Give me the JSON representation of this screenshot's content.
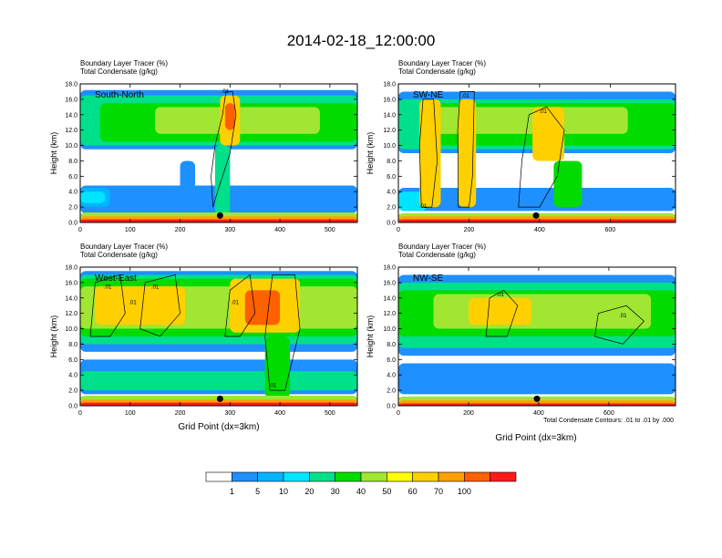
{
  "figure": {
    "title": "2014-02-18_12:00:00",
    "subtitle_line1": "Boundary Layer Tracer   (%)",
    "subtitle_line2": "Total Condensate   (g/kg)",
    "ylabel": "Height (km)",
    "xlabel": "Grid Point (dx=3km)",
    "contour_note": "Total Condensate Contours: .01 to .01 by .000"
  },
  "colorbar": {
    "levels": [
      "1",
      "5",
      "10",
      "20",
      "30",
      "40",
      "50",
      "60",
      "70",
      "100"
    ],
    "colors": [
      "#ffffff",
      "#1e90ff",
      "#00b4ff",
      "#00e5ff",
      "#00e08a",
      "#00dc00",
      "#a0e632",
      "#ffff00",
      "#ffd000",
      "#ffa000",
      "#ff6000",
      "#ff1a1a"
    ]
  },
  "chart_data": [
    {
      "type": "heatmap",
      "panel": "South-North",
      "title": "South-North",
      "xlim": [
        0,
        555
      ],
      "ylim": [
        0,
        18
      ],
      "xticks": [
        "0",
        "100",
        "200",
        "300",
        "400",
        "500"
      ],
      "yticks": [
        "0.0",
        "2.0",
        "4.0",
        "6.0",
        "8.0",
        "10.0",
        "12.0",
        "14.0",
        "16.0",
        "18.0"
      ],
      "marker_x": 280,
      "contour_labels": [
        {
          "text": ".01",
          "x": 290,
          "y": 17.1
        }
      ],
      "regions": [
        {
          "level": 0,
          "x": [
            0,
            555
          ],
          "y": [
            0,
            18
          ]
        },
        {
          "level": 1,
          "x": [
            0,
            555
          ],
          "y": [
            1.2,
            4.8
          ]
        },
        {
          "level": 2,
          "x": [
            0,
            60
          ],
          "y": [
            2.0,
            4.5
          ]
        },
        {
          "level": 3,
          "x": [
            0,
            50
          ],
          "y": [
            2.5,
            4.0
          ]
        },
        {
          "level": 1,
          "x": [
            0,
            555
          ],
          "y": [
            9.5,
            17.2
          ]
        },
        {
          "level": 4,
          "x": [
            0,
            555
          ],
          "y": [
            10.0,
            16.5
          ]
        },
        {
          "level": 5,
          "x": [
            40,
            555
          ],
          "y": [
            10.5,
            15.5
          ]
        },
        {
          "level": 6,
          "x": [
            150,
            480
          ],
          "y": [
            11.5,
            15.0
          ]
        },
        {
          "level": 8,
          "x": [
            280,
            320
          ],
          "y": [
            10.0,
            16.5
          ]
        },
        {
          "level": 10,
          "x": [
            290,
            310
          ],
          "y": [
            12.0,
            15.5
          ]
        },
        {
          "level": 4,
          "x": [
            270,
            300
          ],
          "y": [
            1.0,
            10.0
          ]
        },
        {
          "level": 1,
          "x": [
            200,
            230
          ],
          "y": [
            3.0,
            8.0
          ]
        },
        {
          "level": 6,
          "x": [
            0,
            555
          ],
          "y": [
            0.5,
            1.3
          ]
        },
        {
          "level": 9,
          "x": [
            0,
            555
          ],
          "y": [
            0,
            0.8
          ]
        },
        {
          "level": 11,
          "x": [
            0,
            555
          ],
          "y": [
            0,
            0.4
          ]
        }
      ],
      "contours": [
        [
          [
            266,
            2
          ],
          [
            262,
            6
          ],
          [
            270,
            10
          ],
          [
            285,
            14
          ],
          [
            292,
            17
          ],
          [
            305,
            17
          ],
          [
            312,
            14
          ],
          [
            300,
            9
          ],
          [
            275,
            4
          ]
        ]
      ]
    },
    {
      "type": "heatmap",
      "panel": "SW-NE",
      "title": "SW-NE",
      "xlim": [
        0,
        785
      ],
      "ylim": [
        0,
        18
      ],
      "xticks": [
        "0",
        "200",
        "400",
        "600"
      ],
      "yticks": [
        "0.0",
        "2.0",
        "4.0",
        "6.0",
        "8.0",
        "10.0",
        "12.0",
        "14.0",
        "16.0",
        "18.0"
      ],
      "marker_x": 390,
      "contour_labels": [
        {
          "text": ".01",
          "x": 190,
          "y": 16.5
        },
        {
          "text": ".01",
          "x": 410,
          "y": 14.5
        },
        {
          "text": ".01",
          "x": 70,
          "y": 2.2
        }
      ],
      "regions": [
        {
          "level": 0,
          "x": [
            0,
            785
          ],
          "y": [
            0,
            18
          ]
        },
        {
          "level": 1,
          "x": [
            0,
            785
          ],
          "y": [
            1.5,
            4.5
          ]
        },
        {
          "level": 3,
          "x": [
            0,
            80
          ],
          "y": [
            1.5,
            4.0
          ]
        },
        {
          "level": 1,
          "x": [
            0,
            785
          ],
          "y": [
            9.0,
            17.0
          ]
        },
        {
          "level": 4,
          "x": [
            0,
            785
          ],
          "y": [
            9.5,
            16.0
          ]
        },
        {
          "level": 5,
          "x": [
            60,
            785
          ],
          "y": [
            10.0,
            15.5
          ]
        },
        {
          "level": 6,
          "x": [
            100,
            650
          ],
          "y": [
            11.5,
            15.0
          ]
        },
        {
          "level": 8,
          "x": [
            60,
            120
          ],
          "y": [
            2.0,
            16.0
          ]
        },
        {
          "level": 8,
          "x": [
            170,
            220
          ],
          "y": [
            2.0,
            16.0
          ]
        },
        {
          "level": 8,
          "x": [
            380,
            470
          ],
          "y": [
            8.0,
            15.0
          ]
        },
        {
          "level": 5,
          "x": [
            440,
            520
          ],
          "y": [
            2.0,
            8.0
          ]
        },
        {
          "level": 6,
          "x": [
            0,
            785
          ],
          "y": [
            0.5,
            1.2
          ]
        },
        {
          "level": 9,
          "x": [
            0,
            785
          ],
          "y": [
            0,
            0.8
          ]
        },
        {
          "level": 11,
          "x": [
            0,
            785
          ],
          "y": [
            0,
            0.4
          ]
        }
      ],
      "contours": [
        [
          [
            65,
            2
          ],
          [
            60,
            10
          ],
          [
            70,
            16
          ],
          [
            100,
            16
          ],
          [
            110,
            8
          ],
          [
            95,
            2
          ]
        ],
        [
          [
            170,
            2
          ],
          [
            168,
            12
          ],
          [
            175,
            17
          ],
          [
            215,
            17
          ],
          [
            210,
            6
          ],
          [
            200,
            2
          ]
        ],
        [
          [
            340,
            2
          ],
          [
            350,
            8
          ],
          [
            370,
            14
          ],
          [
            420,
            15
          ],
          [
            470,
            12
          ],
          [
            450,
            6
          ],
          [
            400,
            2
          ]
        ]
      ]
    },
    {
      "type": "heatmap",
      "panel": "West-East",
      "title": "West-East",
      "xlim": [
        0,
        555
      ],
      "ylim": [
        0,
        18
      ],
      "xticks": [
        "0",
        "100",
        "200",
        "300",
        "400",
        "500"
      ],
      "yticks": [
        "0.0",
        "2.0",
        "4.0",
        "6.0",
        "8.0",
        "10.0",
        "12.0",
        "14.0",
        "16.0",
        "18.0"
      ],
      "marker_x": 280,
      "contour_labels": [
        {
          "text": ".01",
          "x": 55,
          "y": 15.5
        },
        {
          "text": ".01",
          "x": 150,
          "y": 15.5
        },
        {
          "text": ".01",
          "x": 105,
          "y": 13.5
        },
        {
          "text": ".01",
          "x": 310,
          "y": 13.5
        },
        {
          "text": ".01",
          "x": 385,
          "y": 2.7
        }
      ],
      "regions": [
        {
          "level": 0,
          "x": [
            0,
            555
          ],
          "y": [
            0,
            18
          ]
        },
        {
          "level": 1,
          "x": [
            0,
            555
          ],
          "y": [
            1.5,
            6.0
          ]
        },
        {
          "level": 4,
          "x": [
            0,
            555
          ],
          "y": [
            2.0,
            4.5
          ]
        },
        {
          "level": 1,
          "x": [
            0,
            555
          ],
          "y": [
            7.0,
            17.5
          ]
        },
        {
          "level": 4,
          "x": [
            0,
            555
          ],
          "y": [
            8.0,
            17.0
          ]
        },
        {
          "level": 5,
          "x": [
            0,
            555
          ],
          "y": [
            9.0,
            16.5
          ]
        },
        {
          "level": 6,
          "x": [
            0,
            555
          ],
          "y": [
            10.0,
            15.5
          ]
        },
        {
          "level": 8,
          "x": [
            30,
            210
          ],
          "y": [
            10.5,
            15.5
          ]
        },
        {
          "level": 8,
          "x": [
            300,
            440
          ],
          "y": [
            9.5,
            16.5
          ]
        },
        {
          "level": 10,
          "x": [
            330,
            400
          ],
          "y": [
            10.5,
            15.0
          ]
        },
        {
          "level": 5,
          "x": [
            370,
            420
          ],
          "y": [
            1.0,
            9.0
          ]
        },
        {
          "level": 6,
          "x": [
            0,
            555
          ],
          "y": [
            0.5,
            1.3
          ]
        },
        {
          "level": 9,
          "x": [
            0,
            555
          ],
          "y": [
            0,
            0.8
          ]
        },
        {
          "level": 11,
          "x": [
            0,
            555
          ],
          "y": [
            0,
            0.4
          ]
        }
      ],
      "contours": [
        [
          [
            20,
            9
          ],
          [
            30,
            16
          ],
          [
            80,
            17
          ],
          [
            90,
            12
          ],
          [
            60,
            9
          ]
        ],
        [
          [
            120,
            10
          ],
          [
            130,
            16
          ],
          [
            190,
            17
          ],
          [
            200,
            12
          ],
          [
            160,
            9
          ]
        ],
        [
          [
            290,
            9
          ],
          [
            300,
            15
          ],
          [
            340,
            17
          ],
          [
            350,
            12
          ],
          [
            320,
            9
          ]
        ],
        [
          [
            380,
            2
          ],
          [
            370,
            9
          ],
          [
            385,
            17
          ],
          [
            430,
            17
          ],
          [
            440,
            10
          ],
          [
            410,
            2
          ]
        ]
      ]
    },
    {
      "type": "heatmap",
      "panel": "NW-SE",
      "title": "NW-SE",
      "xlim": [
        0,
        790
      ],
      "ylim": [
        0,
        18
      ],
      "xticks": [
        "0",
        "200",
        "400",
        "600"
      ],
      "yticks": [
        "0.0",
        "2.0",
        "4.0",
        "6.0",
        "8.0",
        "10.0",
        "12.0",
        "14.0",
        "16.0",
        "18.0"
      ],
      "marker_x": 395,
      "contour_labels": [
        {
          "text": ".01",
          "x": 290,
          "y": 14.5
        },
        {
          "text": ".01",
          "x": 640,
          "y": 11.8
        }
      ],
      "regions": [
        {
          "level": 0,
          "x": [
            0,
            790
          ],
          "y": [
            0,
            18
          ]
        },
        {
          "level": 1,
          "x": [
            0,
            790
          ],
          "y": [
            1.5,
            5.5
          ]
        },
        {
          "level": 1,
          "x": [
            0,
            790
          ],
          "y": [
            6.5,
            17.0
          ]
        },
        {
          "level": 4,
          "x": [
            0,
            790
          ],
          "y": [
            7.5,
            16.0
          ]
        },
        {
          "level": 5,
          "x": [
            0,
            790
          ],
          "y": [
            9.0,
            15.0
          ]
        },
        {
          "level": 6,
          "x": [
            100,
            720
          ],
          "y": [
            10.0,
            14.5
          ]
        },
        {
          "level": 8,
          "x": [
            200,
            380
          ],
          "y": [
            10.5,
            14.0
          ]
        },
        {
          "level": 6,
          "x": [
            0,
            790
          ],
          "y": [
            0.5,
            1.2
          ]
        },
        {
          "level": 9,
          "x": [
            0,
            790
          ],
          "y": [
            0,
            0.7
          ]
        },
        {
          "level": 11,
          "x": [
            0,
            790
          ],
          "y": [
            0,
            0.3
          ]
        }
      ],
      "contours": [
        [
          [
            250,
            9
          ],
          [
            260,
            14
          ],
          [
            300,
            15
          ],
          [
            340,
            13
          ],
          [
            310,
            9
          ]
        ],
        [
          [
            560,
            9
          ],
          [
            570,
            12
          ],
          [
            650,
            13
          ],
          [
            700,
            11
          ],
          [
            640,
            8
          ]
        ]
      ]
    }
  ]
}
